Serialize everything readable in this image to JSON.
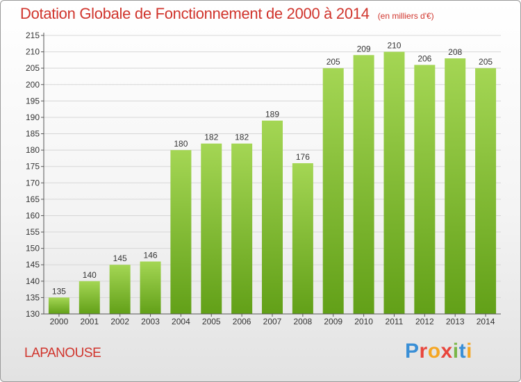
{
  "header": {
    "title": "Dotation Globale de Fonctionnement de 2000 à 2014",
    "unit": "(en milliers d'€)"
  },
  "footer": {
    "commune": "LAPANOUSE",
    "logo_text": "Proxiti",
    "logo_colors": [
      "#3a8fd6",
      "#e8453c",
      "#f5a623",
      "#e8453c",
      "#7ab648",
      "#3a8fd6",
      "#f5a623"
    ]
  },
  "colors": {
    "bar_top": "#a4d654",
    "bar_bottom": "#62a018",
    "grid": "#d6d6d6",
    "accent": "#d0342c"
  },
  "chart_data": {
    "type": "bar",
    "title": "Dotation Globale de Fonctionnement de 2000 à 2014",
    "unit": "(en milliers d'€)",
    "categories": [
      "2000",
      "2001",
      "2002",
      "2003",
      "2004",
      "2005",
      "2006",
      "2007",
      "2008",
      "2009",
      "2010",
      "2011",
      "2012",
      "2013",
      "2014"
    ],
    "values": [
      135,
      140,
      145,
      146,
      180,
      182,
      182,
      189,
      176,
      205,
      209,
      210,
      206,
      208,
      205
    ],
    "ylim": [
      130,
      215
    ],
    "yticks": [
      130,
      135,
      140,
      145,
      150,
      155,
      160,
      165,
      170,
      175,
      180,
      185,
      190,
      195,
      200,
      205,
      210,
      215
    ],
    "grid": true,
    "data_labels": true
  }
}
